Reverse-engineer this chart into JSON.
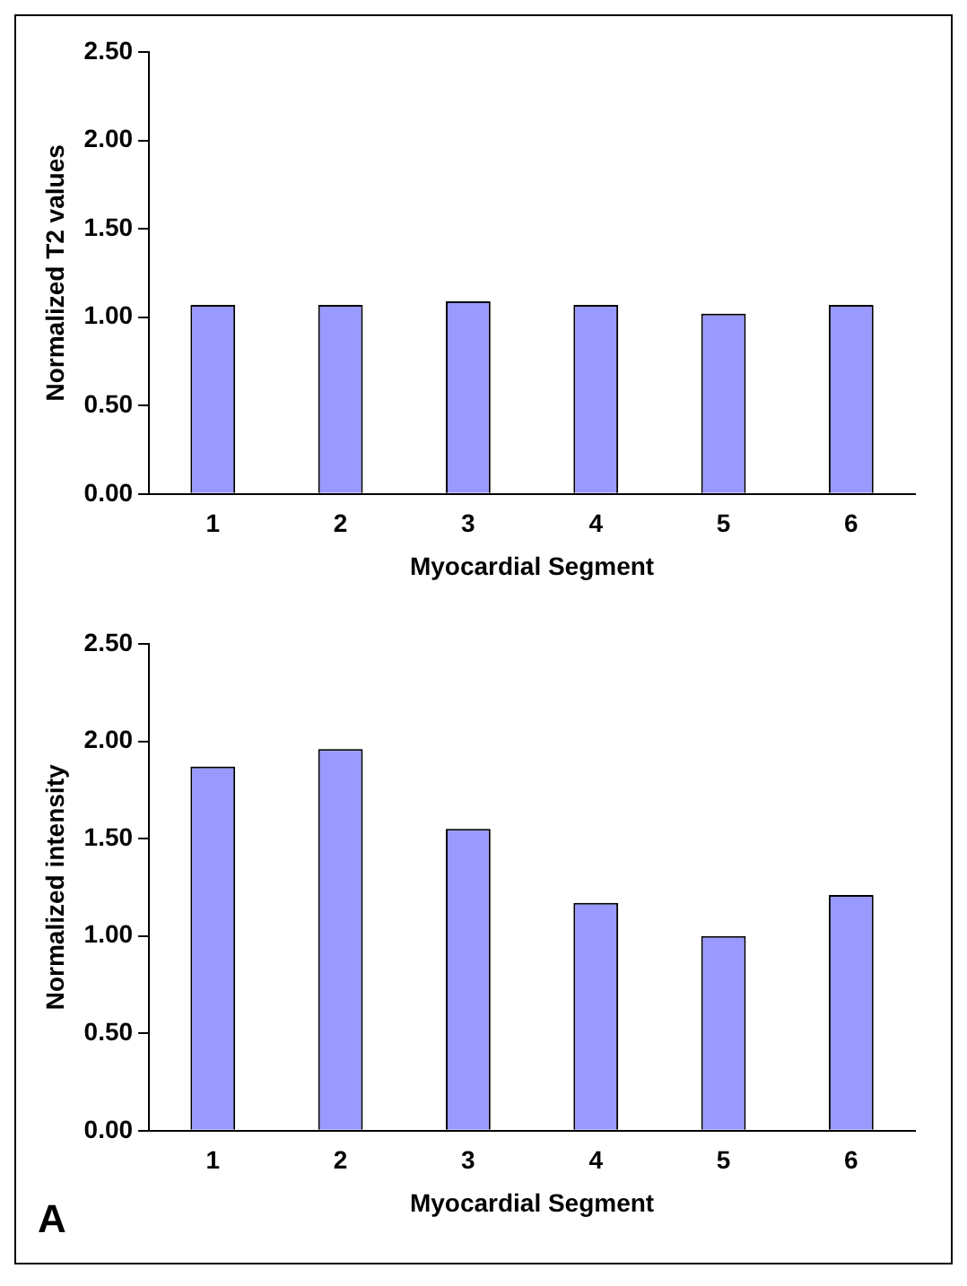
{
  "chart_data": [
    {
      "type": "bar",
      "xlabel": "Myocardial Segment",
      "ylabel": "Normalized T2 values",
      "categories": [
        "1",
        "2",
        "3",
        "4",
        "5",
        "6"
      ],
      "values": [
        1.07,
        1.07,
        1.09,
        1.07,
        1.02,
        1.07
      ],
      "color": "#9999ff",
      "ylim": [
        0,
        2.5
      ],
      "yticks": [
        {
          "value": 0,
          "label": "0.00"
        },
        {
          "value": 0.5,
          "label": "0.50"
        },
        {
          "value": 1,
          "label": "1.00"
        },
        {
          "value": 1.5,
          "label": "1.50"
        },
        {
          "value": 2,
          "label": "2.00"
        },
        {
          "value": 2.5,
          "label": "2.50"
        }
      ],
      "grid": false,
      "legend": false
    },
    {
      "type": "bar",
      "xlabel": "Myocardial Segment",
      "ylabel": "Normalized intensity",
      "categories": [
        "1",
        "2",
        "3",
        "4",
        "5",
        "6"
      ],
      "values": [
        1.87,
        1.96,
        1.55,
        1.17,
        1.0,
        1.21
      ],
      "color": "#9999ff",
      "ylim": [
        0,
        2.5
      ],
      "yticks": [
        {
          "value": 0,
          "label": "0.00"
        },
        {
          "value": 0.5,
          "label": "0.50"
        },
        {
          "value": 1,
          "label": "1.00"
        },
        {
          "value": 1.5,
          "label": "1.50"
        },
        {
          "value": 2,
          "label": "2.00"
        },
        {
          "value": 2.5,
          "label": "2.50"
        }
      ],
      "grid": false,
      "legend": false,
      "annotations": [
        "A"
      ]
    }
  ]
}
